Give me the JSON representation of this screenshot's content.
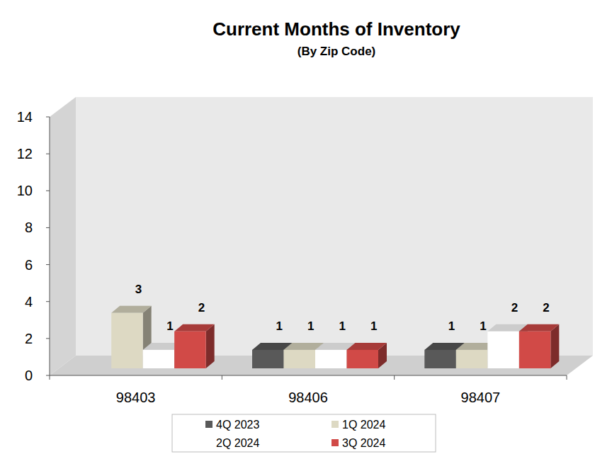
{
  "chart_data": {
    "type": "bar",
    "title": "Current Months of Inventory",
    "subtitle": "(By Zip Code)",
    "categories": [
      "98403",
      "98406",
      "98407"
    ],
    "series": [
      {
        "name": "4Q 2023",
        "color": "#595959",
        "values": [
          null,
          1,
          1
        ]
      },
      {
        "name": "1Q 2024",
        "color": "#ddd9c3",
        "values": [
          3,
          1,
          1
        ]
      },
      {
        "name": "2Q 2024",
        "color": "#ffffff",
        "values": [
          1,
          1,
          2
        ]
      },
      {
        "name": "3Q 2024",
        "color": "#d14a47",
        "values": [
          2,
          1,
          2
        ]
      }
    ],
    "ylim": [
      0,
      14
    ],
    "yticks": [
      0,
      2,
      4,
      6,
      8,
      10,
      12,
      14
    ],
    "grid": false,
    "legend": "bottom",
    "data_labels": true
  }
}
